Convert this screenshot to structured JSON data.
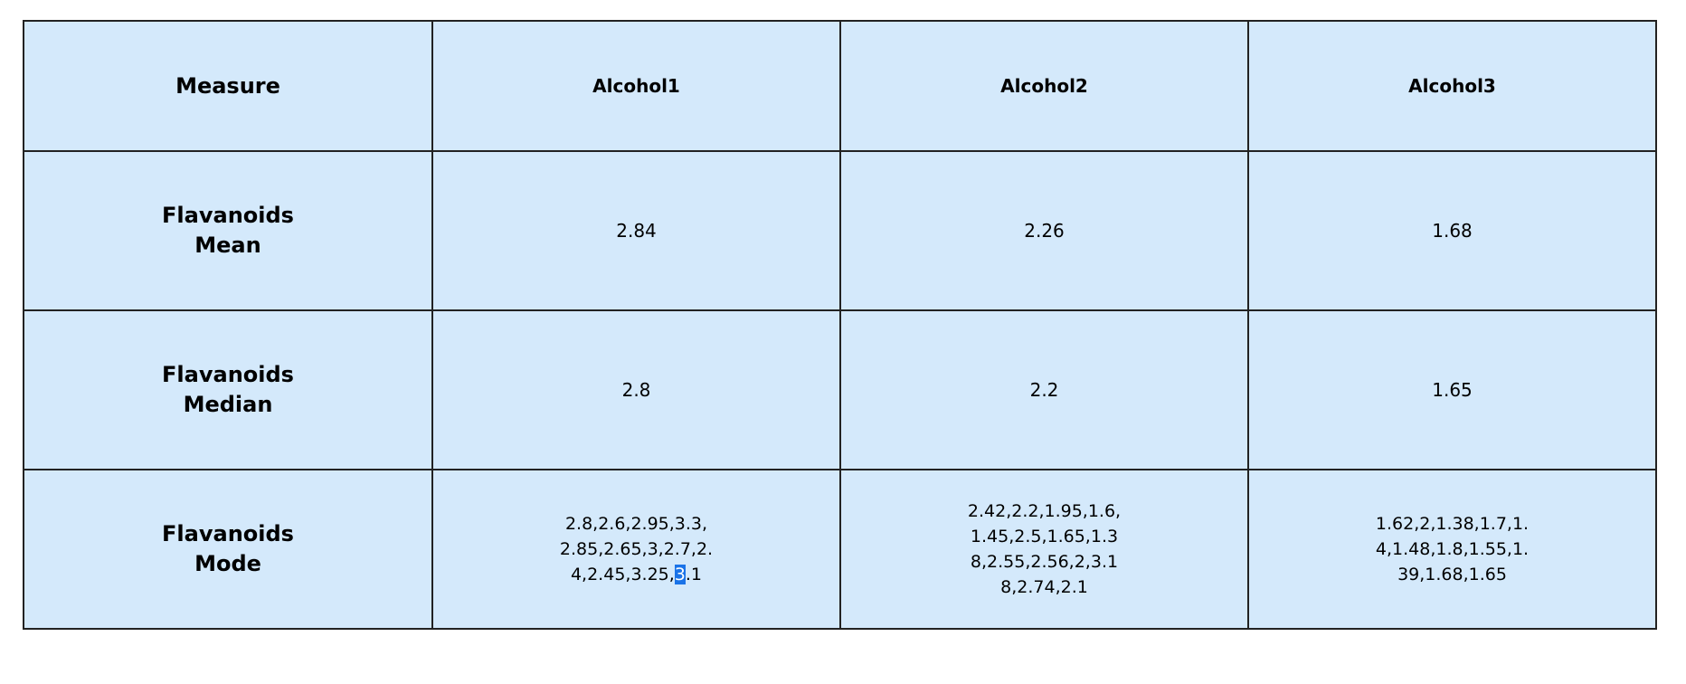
{
  "table": {
    "header": {
      "measure": "Measure",
      "columns": [
        "Alcohol1",
        "Alcohol2",
        "Alcohol3"
      ]
    },
    "rows": [
      {
        "label_line1": "Flavanoids",
        "label_line2": "Mean",
        "values": [
          "2.84",
          "2.26",
          "1.68"
        ]
      },
      {
        "label_line1": "Flavanoids",
        "label_line2": "Median",
        "values": [
          "2.8",
          "2.2",
          "1.65"
        ]
      },
      {
        "label_line1": "Flavanoids",
        "label_line2": "Mode",
        "values": [
          "2.8,2.6,2.95,3.3,2.85,2.65,3,2.7,2.4,2.45,3.25,3.1",
          "2.42,2.2,1.95,1.6,1.45,2.5,1.65,1.38,2.55,2.56,2,3.18,2.74,2.1",
          "1.62,2,1.38,1.7,1.4,1.48,1.8,1.55,1.39,1.68,1.65"
        ],
        "alcohol1_parts": {
          "before_selection": "2.8,2.6,2.95,3.3,2.85,2.65,3,2.7,2.4,2.45,3.25,",
          "selected": "3",
          "after_selection": ".1"
        }
      }
    ]
  }
}
